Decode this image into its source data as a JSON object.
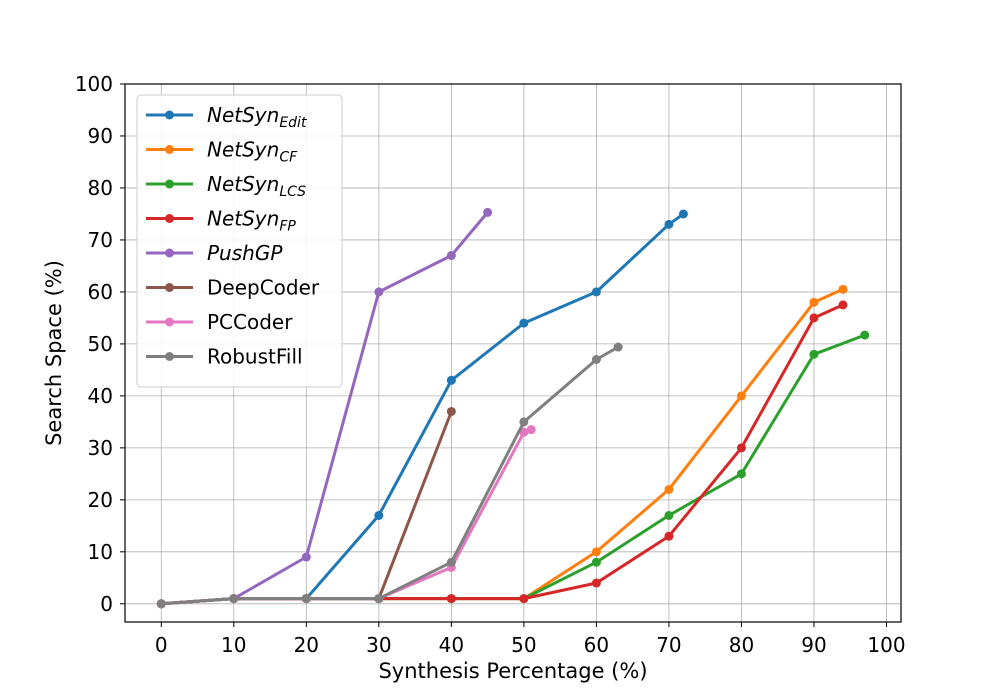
{
  "chart_data": {
    "type": "line",
    "title": "",
    "xlabel": "Synthesis Percentage (%)",
    "ylabel": "Search Space (%)",
    "xlim": [
      -5,
      102
    ],
    "ylim": [
      -3.5,
      100
    ],
    "xticks": [
      0,
      10,
      20,
      30,
      40,
      50,
      60,
      70,
      80,
      90,
      100
    ],
    "yticks": [
      0,
      10,
      20,
      30,
      40,
      50,
      60,
      70,
      80,
      90,
      100
    ],
    "grid": true,
    "legend_position": "top-left",
    "series": [
      {
        "id": "netsyn-edit",
        "name": "NetSyn",
        "sub": "Edit",
        "italic": true,
        "color": "#1f77b4",
        "x": [
          0,
          10,
          20,
          30,
          40,
          50,
          60,
          70,
          72
        ],
        "y": [
          0,
          1,
          1,
          17,
          43,
          54,
          60,
          73,
          75
        ]
      },
      {
        "id": "netsyn-cf",
        "name": "NetSyn",
        "sub": "CF",
        "italic": true,
        "color": "#ff7f0e",
        "x": [
          0,
          10,
          20,
          30,
          40,
          50,
          60,
          70,
          80,
          90,
          94
        ],
        "y": [
          0,
          1,
          1,
          1,
          1,
          1,
          10,
          22,
          40,
          58,
          60.5
        ]
      },
      {
        "id": "netsyn-lcs",
        "name": "NetSyn",
        "sub": "LCS",
        "italic": true,
        "color": "#2ca02c",
        "x": [
          0,
          10,
          20,
          30,
          40,
          50,
          60,
          70,
          80,
          90,
          97
        ],
        "y": [
          0,
          1,
          1,
          1,
          1,
          1,
          8,
          17,
          25,
          48,
          51.7
        ]
      },
      {
        "id": "netsyn-fp",
        "name": "NetSyn",
        "sub": "FP",
        "italic": true,
        "color": "#d62728",
        "x": [
          0,
          10,
          20,
          30,
          40,
          50,
          60,
          70,
          80,
          90,
          94
        ],
        "y": [
          0,
          1,
          1,
          1,
          1,
          1,
          4,
          13,
          30,
          55,
          57.5
        ]
      },
      {
        "id": "pushgp",
        "name": "PushGP",
        "sub": "",
        "italic": true,
        "color": "#9467bd",
        "x": [
          0,
          10,
          20,
          30,
          40,
          45
        ],
        "y": [
          0,
          1,
          9,
          60,
          67,
          75.3
        ]
      },
      {
        "id": "deepcoder",
        "name": "DeepCoder",
        "sub": "",
        "italic": false,
        "color": "#8c564b",
        "x": [
          0,
          10,
          20,
          30,
          40
        ],
        "y": [
          0,
          1,
          1,
          1,
          37
        ]
      },
      {
        "id": "pccoder",
        "name": "PCCoder",
        "sub": "",
        "italic": false,
        "color": "#e377c2",
        "x": [
          0,
          10,
          20,
          30,
          40,
          50,
          51
        ],
        "y": [
          0,
          1,
          1,
          1,
          7,
          33,
          33.5
        ]
      },
      {
        "id": "robustfill",
        "name": "RobustFill",
        "sub": "",
        "italic": false,
        "color": "#7f7f7f",
        "x": [
          0,
          10,
          20,
          30,
          40,
          50,
          60,
          63
        ],
        "y": [
          0,
          1,
          1,
          1,
          8,
          35,
          47,
          49.4
        ]
      }
    ]
  }
}
